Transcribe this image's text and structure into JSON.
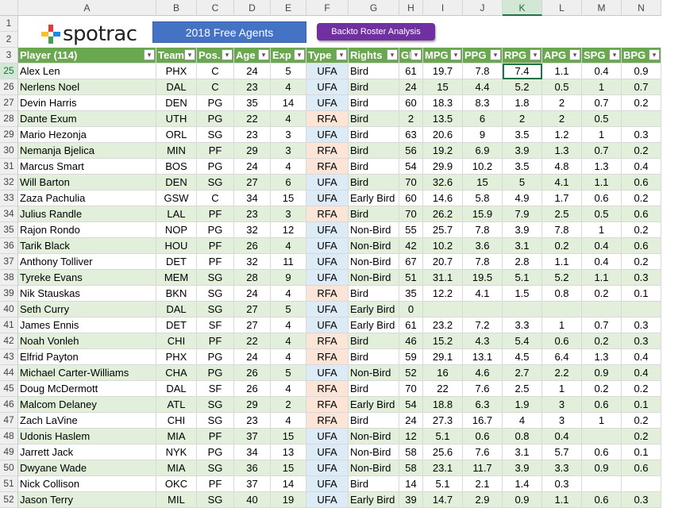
{
  "columns": [
    "A",
    "B",
    "C",
    "D",
    "E",
    "F",
    "G",
    "H",
    "I",
    "J",
    "K",
    "L",
    "M",
    "N"
  ],
  "active_cell": "K25",
  "row1_num": "1",
  "row2_num": "2",
  "logo_text": "spotrac",
  "title_button": "2018 Free Agents",
  "back_button": "Backto Roster Analysis",
  "header_row_num": "3",
  "headers": [
    "Player (114)",
    "Team",
    "Pos.",
    "Age",
    "Exp",
    "Type",
    "Rights",
    "GP",
    "MPG",
    "PPG",
    "RPG",
    "APG",
    "SPG",
    "BPG"
  ],
  "rows": [
    {
      "n": "25",
      "c": [
        "Alex Len",
        "PHX",
        "C",
        "24",
        "5",
        "UFA",
        "Bird",
        "61",
        "19.7",
        "7.8",
        "7.4",
        "1.1",
        "0.4",
        "0.9"
      ]
    },
    {
      "n": "26",
      "c": [
        "Nerlens Noel",
        "DAL",
        "C",
        "23",
        "4",
        "UFA",
        "Bird",
        "24",
        "15",
        "4.4",
        "5.2",
        "0.5",
        "1",
        "0.7"
      ]
    },
    {
      "n": "27",
      "c": [
        "Devin Harris",
        "DEN",
        "PG",
        "35",
        "14",
        "UFA",
        "Bird",
        "60",
        "18.3",
        "8.3",
        "1.8",
        "2",
        "0.7",
        "0.2"
      ]
    },
    {
      "n": "28",
      "c": [
        "Dante Exum",
        "UTH",
        "PG",
        "22",
        "4",
        "RFA",
        "Bird",
        "2",
        "13.5",
        "6",
        "2",
        "2",
        "0.5",
        ""
      ]
    },
    {
      "n": "29",
      "c": [
        "Mario Hezonja",
        "ORL",
        "SG",
        "23",
        "3",
        "UFA",
        "Bird",
        "63",
        "20.6",
        "9",
        "3.5",
        "1.2",
        "1",
        "0.3"
      ]
    },
    {
      "n": "30",
      "c": [
        "Nemanja Bjelica",
        "MIN",
        "PF",
        "29",
        "3",
        "RFA",
        "Bird",
        "56",
        "19.2",
        "6.9",
        "3.9",
        "1.3",
        "0.7",
        "0.2"
      ]
    },
    {
      "n": "31",
      "c": [
        "Marcus Smart",
        "BOS",
        "PG",
        "24",
        "4",
        "RFA",
        "Bird",
        "54",
        "29.9",
        "10.2",
        "3.5",
        "4.8",
        "1.3",
        "0.4"
      ]
    },
    {
      "n": "32",
      "c": [
        "Will Barton",
        "DEN",
        "SG",
        "27",
        "6",
        "UFA",
        "Bird",
        "70",
        "32.6",
        "15",
        "5",
        "4.1",
        "1.1",
        "0.6"
      ]
    },
    {
      "n": "33",
      "c": [
        "Zaza Pachulia",
        "GSW",
        "C",
        "34",
        "15",
        "UFA",
        "Early Bird",
        "60",
        "14.6",
        "5.8",
        "4.9",
        "1.7",
        "0.6",
        "0.2"
      ]
    },
    {
      "n": "34",
      "c": [
        "Julius Randle",
        "LAL",
        "PF",
        "23",
        "3",
        "RFA",
        "Bird",
        "70",
        "26.2",
        "15.9",
        "7.9",
        "2.5",
        "0.5",
        "0.6"
      ]
    },
    {
      "n": "35",
      "c": [
        "Rajon Rondo",
        "NOP",
        "PG",
        "32",
        "12",
        "UFA",
        "Non-Bird",
        "55",
        "25.7",
        "7.8",
        "3.9",
        "7.8",
        "1",
        "0.2"
      ]
    },
    {
      "n": "36",
      "c": [
        "Tarik Black",
        "HOU",
        "PF",
        "26",
        "4",
        "UFA",
        "Non-Bird",
        "42",
        "10.2",
        "3.6",
        "3.1",
        "0.2",
        "0.4",
        "0.6"
      ]
    },
    {
      "n": "37",
      "c": [
        "Anthony Tolliver",
        "DET",
        "PF",
        "32",
        "11",
        "UFA",
        "Non-Bird",
        "67",
        "20.7",
        "7.8",
        "2.8",
        "1.1",
        "0.4",
        "0.2"
      ]
    },
    {
      "n": "38",
      "c": [
        "Tyreke Evans",
        "MEM",
        "SG",
        "28",
        "9",
        "UFA",
        "Non-Bird",
        "51",
        "31.1",
        "19.5",
        "5.1",
        "5.2",
        "1.1",
        "0.3"
      ]
    },
    {
      "n": "39",
      "c": [
        "Nik Stauskas",
        "BKN",
        "SG",
        "24",
        "4",
        "RFA",
        "Bird",
        "35",
        "12.2",
        "4.1",
        "1.5",
        "0.8",
        "0.2",
        "0.1"
      ]
    },
    {
      "n": "40",
      "c": [
        "Seth Curry",
        "DAL",
        "SG",
        "27",
        "5",
        "UFA",
        "Early Bird",
        "0",
        "",
        "",
        "",
        "",
        "",
        ""
      ]
    },
    {
      "n": "41",
      "c": [
        "James Ennis",
        "DET",
        "SF",
        "27",
        "4",
        "UFA",
        "Early Bird",
        "61",
        "23.2",
        "7.2",
        "3.3",
        "1",
        "0.7",
        "0.3"
      ]
    },
    {
      "n": "42",
      "c": [
        "Noah Vonleh",
        "CHI",
        "PF",
        "22",
        "4",
        "RFA",
        "Bird",
        "46",
        "15.2",
        "4.3",
        "5.4",
        "0.6",
        "0.2",
        "0.3"
      ]
    },
    {
      "n": "43",
      "c": [
        "Elfrid Payton",
        "PHX",
        "PG",
        "24",
        "4",
        "RFA",
        "Bird",
        "59",
        "29.1",
        "13.1",
        "4.5",
        "6.4",
        "1.3",
        "0.4"
      ]
    },
    {
      "n": "44",
      "c": [
        "Michael Carter-Williams",
        "CHA",
        "PG",
        "26",
        "5",
        "UFA",
        "Non-Bird",
        "52",
        "16",
        "4.6",
        "2.7",
        "2.2",
        "0.9",
        "0.4"
      ]
    },
    {
      "n": "45",
      "c": [
        "Doug McDermott",
        "DAL",
        "SF",
        "26",
        "4",
        "RFA",
        "Bird",
        "70",
        "22",
        "7.6",
        "2.5",
        "1",
        "0.2",
        "0.2"
      ]
    },
    {
      "n": "46",
      "c": [
        "Malcom Delaney",
        "ATL",
        "SG",
        "29",
        "2",
        "RFA",
        "Early Bird",
        "54",
        "18.8",
        "6.3",
        "1.9",
        "3",
        "0.6",
        "0.1"
      ]
    },
    {
      "n": "47",
      "c": [
        "Zach LaVine",
        "CHI",
        "SG",
        "23",
        "4",
        "RFA",
        "Bird",
        "24",
        "27.3",
        "16.7",
        "4",
        "3",
        "1",
        "0.2"
      ]
    },
    {
      "n": "48",
      "c": [
        "Udonis Haslem",
        "MIA",
        "PF",
        "37",
        "15",
        "UFA",
        "Non-Bird",
        "12",
        "5.1",
        "0.6",
        "0.8",
        "0.4",
        "",
        "0.2"
      ]
    },
    {
      "n": "49",
      "c": [
        "Jarrett Jack",
        "NYK",
        "PG",
        "34",
        "13",
        "UFA",
        "Non-Bird",
        "58",
        "25.6",
        "7.6",
        "3.1",
        "5.7",
        "0.6",
        "0.1"
      ]
    },
    {
      "n": "50",
      "c": [
        "Dwyane Wade",
        "MIA",
        "SG",
        "36",
        "15",
        "UFA",
        "Non-Bird",
        "58",
        "23.1",
        "11.7",
        "3.9",
        "3.3",
        "0.9",
        "0.6"
      ]
    },
    {
      "n": "51",
      "c": [
        "Nick Collison",
        "OKC",
        "PF",
        "37",
        "14",
        "UFA",
        "Bird",
        "14",
        "5.1",
        "2.1",
        "1.4",
        "0.3",
        "",
        ""
      ]
    },
    {
      "n": "52",
      "c": [
        "Jason Terry",
        "MIL",
        "SG",
        "40",
        "19",
        "UFA",
        "Early Bird",
        "39",
        "14.7",
        "2.9",
        "0.9",
        "1.1",
        "0.6",
        "0.3"
      ]
    }
  ],
  "colors": {
    "header_green": "#6aa84f",
    "band_green": "#e2efda",
    "ufa_blue": "#ddebf7",
    "rfa_orange": "#fce4d6",
    "title_blue": "#4472c4",
    "back_purple": "#7030a0"
  }
}
